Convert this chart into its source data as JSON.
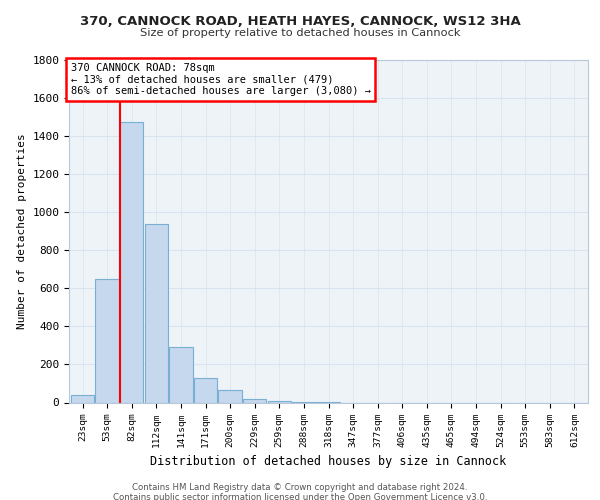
{
  "title1": "370, CANNOCK ROAD, HEATH HAYES, CANNOCK, WS12 3HA",
  "title2": "Size of property relative to detached houses in Cannock",
  "xlabel": "Distribution of detached houses by size in Cannock",
  "ylabel": "Number of detached properties",
  "bin_labels": [
    "23sqm",
    "53sqm",
    "82sqm",
    "112sqm",
    "141sqm",
    "171sqm",
    "200sqm",
    "229sqm",
    "259sqm",
    "288sqm",
    "318sqm",
    "347sqm",
    "377sqm",
    "406sqm",
    "435sqm",
    "465sqm",
    "494sqm",
    "524sqm",
    "553sqm",
    "583sqm",
    "612sqm"
  ],
  "bar_heights": [
    40,
    650,
    1475,
    940,
    290,
    130,
    65,
    20,
    8,
    3,
    1,
    0,
    0,
    0,
    0,
    0,
    0,
    0,
    0,
    0,
    0
  ],
  "bar_color": "#c5d8ee",
  "bar_edge_color": "#7aafd4",
  "vline_color": "red",
  "annotation_text": "370 CANNOCK ROAD: 78sqm\n← 13% of detached houses are smaller (479)\n86% of semi-detached houses are larger (3,080) →",
  "annotation_box_facecolor": "white",
  "annotation_box_edgecolor": "red",
  "ylim": [
    0,
    1800
  ],
  "yticks": [
    0,
    200,
    400,
    600,
    800,
    1000,
    1200,
    1400,
    1600,
    1800
  ],
  "grid_color": "#d8e4ee",
  "bg_color": "#ffffff",
  "plot_bg_color": "#eef3f8",
  "footer_text": "Contains HM Land Registry data © Crown copyright and database right 2024.\nContains public sector information licensed under the Open Government Licence v3.0."
}
